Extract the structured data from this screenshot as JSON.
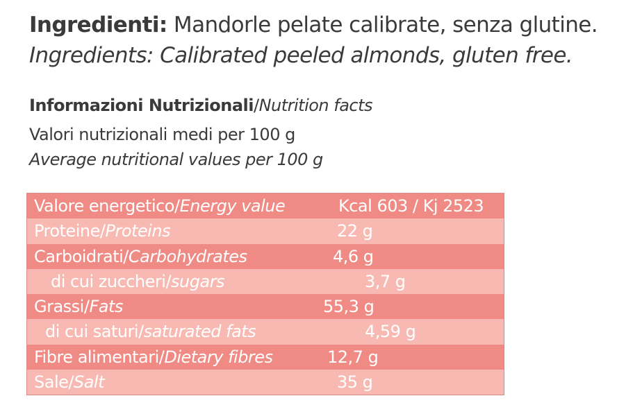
{
  "ingredients": {
    "label_it": "Ingredienti:",
    "text_it": " Mandorle pelate calibrate, senza glutine.",
    "text_en": "Ingredients: Calibrated peeled almonds, gluten free."
  },
  "nutrition": {
    "heading_it": "Informazioni Nutrizionali",
    "separator": "/",
    "heading_en": "Nutrition facts",
    "per100_it": "Valori nutrizionali medi per 100 g",
    "per100_en": "Average nutritional values per 100 g",
    "rows": [
      {
        "it": "Valore energetico/",
        "en": "Energy value",
        "value": "Kcal 603  /  Kj 2523"
      },
      {
        "it": "Proteine/",
        "en": "Proteins",
        "value": "22 g"
      },
      {
        "it": "Carboidrati/",
        "en": "Carbohydrates",
        "value": "4,6 g"
      },
      {
        "it": "di cui zuccheri/",
        "en": "sugars",
        "value": "3,7 g"
      },
      {
        "it": "Grassi/",
        "en": "Fats",
        "value": "55,3 g"
      },
      {
        "it": "di cui saturi/",
        "en": "saturated fats",
        "value": "4,59 g"
      },
      {
        "it": "Fibre alimentari/",
        "en": "Dietary fibres",
        "value": "12,7 g"
      },
      {
        "it": "Sale/",
        "en": "Salt",
        "value": "35 g"
      }
    ]
  },
  "colors": {
    "row_dark": "#f08a84",
    "row_light": "#f9b9b3",
    "text": "#3a3a3a"
  }
}
